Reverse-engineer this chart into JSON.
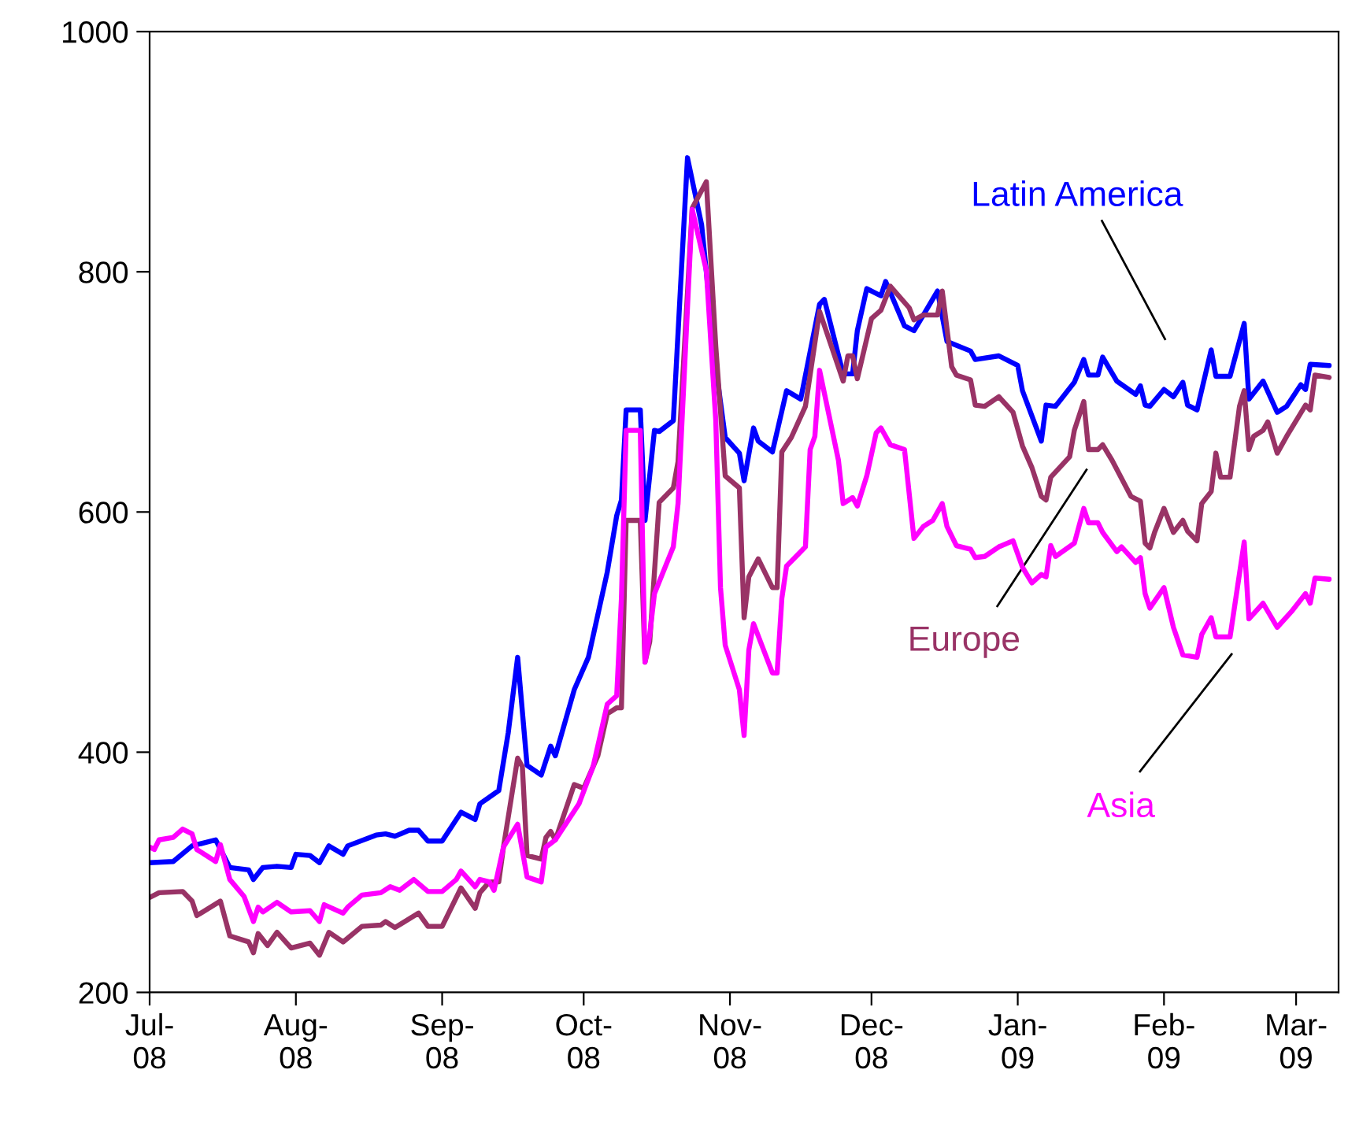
{
  "chart_data": {
    "type": "line",
    "xlim": [
      "2008-07-01",
      "2009-03-10"
    ],
    "ylim": [
      200,
      1000
    ],
    "yticks": [
      200,
      400,
      600,
      800,
      1000
    ],
    "xticks": [
      {
        "value": "2008-07-01",
        "label": "Jul-\n08"
      },
      {
        "value": "2008-08-01",
        "label": "Aug-\n08"
      },
      {
        "value": "2008-09-01",
        "label": "Sep-\n08"
      },
      {
        "value": "2008-10-01",
        "label": "Oct-\n08"
      },
      {
        "value": "2008-11-01",
        "label": "Nov-\n08"
      },
      {
        "value": "2008-12-01",
        "label": "Dec-\n08"
      },
      {
        "value": "2009-01-01",
        "label": "Jan-\n09"
      },
      {
        "value": "2009-02-01",
        "label": "Feb-\n09"
      },
      {
        "value": "2009-03-01",
        "label": "Mar-\n09"
      }
    ],
    "grid": false,
    "legend": false,
    "marker": "none",
    "line_style": "solid",
    "series": [
      {
        "name": "Latin America",
        "color": "#0000ff",
        "x": [
          "2008-07-01",
          "2008-07-06",
          "2008-07-10",
          "2008-07-15",
          "2008-07-18",
          "2008-07-22",
          "2008-07-23",
          "2008-07-25",
          "2008-07-28",
          "2008-07-31",
          "2008-08-01",
          "2008-08-04",
          "2008-08-06",
          "2008-08-08",
          "2008-08-11",
          "2008-08-12",
          "2008-08-18",
          "2008-08-20",
          "2008-08-22",
          "2008-08-25",
          "2008-08-27",
          "2008-08-29",
          "2008-09-01",
          "2008-09-05",
          "2008-09-08",
          "2008-09-09",
          "2008-09-13",
          "2008-09-15",
          "2008-09-17",
          "2008-09-19",
          "2008-09-22",
          "2008-09-24",
          "2008-09-25",
          "2008-09-29",
          "2008-10-02",
          "2008-10-06",
          "2008-10-08",
          "2008-10-09",
          "2008-10-10",
          "2008-10-13",
          "2008-10-14",
          "2008-10-16",
          "2008-10-17",
          "2008-10-20",
          "2008-10-23",
          "2008-10-26",
          "2008-10-29",
          "2008-10-31",
          "2008-11-03",
          "2008-11-04",
          "2008-11-06",
          "2008-11-07",
          "2008-11-10",
          "2008-11-13",
          "2008-11-16",
          "2008-11-20",
          "2008-11-21",
          "2008-11-25",
          "2008-11-27",
          "2008-11-28",
          "2008-11-30",
          "2008-12-03",
          "2008-12-04",
          "2008-12-08",
          "2008-12-10",
          "2008-12-12",
          "2008-12-15",
          "2008-12-17",
          "2008-12-22",
          "2008-12-23",
          "2008-12-28",
          "2009-01-01",
          "2009-01-02",
          "2009-01-06",
          "2009-01-07",
          "2009-01-09",
          "2009-01-13",
          "2009-01-15",
          "2009-01-16",
          "2009-01-18",
          "2009-01-19",
          "2009-01-22",
          "2009-01-26",
          "2009-01-27",
          "2009-01-28",
          "2009-01-29",
          "2009-02-01",
          "2009-02-03",
          "2009-02-05",
          "2009-02-06",
          "2009-02-08",
          "2009-02-11",
          "2009-02-12",
          "2009-02-15",
          "2009-02-18",
          "2009-02-19",
          "2009-02-22",
          "2009-02-25",
          "2009-02-27",
          "2009-03-02",
          "2009-03-03",
          "2009-03-04",
          "2009-03-08"
        ],
        "values": [
          308,
          309,
          322,
          327,
          304,
          302,
          294,
          304,
          305,
          304,
          315,
          314,
          308,
          322,
          315,
          322,
          331,
          332,
          330,
          335,
          335,
          326,
          326,
          350,
          344,
          357,
          368,
          416,
          479,
          389,
          381,
          405,
          397,
          452,
          479,
          550,
          597,
          610,
          685,
          685,
          593,
          668,
          667,
          676,
          895,
          839,
          721,
          662,
          649,
          626,
          670,
          659,
          650,
          701,
          694,
          773,
          777,
          715,
          715,
          751,
          786,
          780,
          792,
          755,
          751,
          764,
          784,
          742,
          734,
          727,
          730,
          722,
          701,
          659,
          689,
          688,
          708,
          727,
          714,
          714,
          729,
          709,
          698,
          705,
          689,
          688,
          702,
          696,
          708,
          689,
          685,
          735,
          713,
          713,
          757,
          694,
          709,
          683,
          688,
          706,
          702,
          723,
          722
        ]
      },
      {
        "name": "Europe",
        "color": "#993366",
        "x": [
          "2008-07-01",
          "2008-07-03",
          "2008-07-08",
          "2008-07-10",
          "2008-07-11",
          "2008-07-16",
          "2008-07-18",
          "2008-07-22",
          "2008-07-23",
          "2008-07-24",
          "2008-07-26",
          "2008-07-28",
          "2008-07-31",
          "2008-08-04",
          "2008-08-06",
          "2008-08-08",
          "2008-08-11",
          "2008-08-15",
          "2008-08-19",
          "2008-08-20",
          "2008-08-22",
          "2008-08-27",
          "2008-08-29",
          "2008-09-01",
          "2008-09-05",
          "2008-09-08",
          "2008-09-09",
          "2008-09-11",
          "2008-09-13",
          "2008-09-14",
          "2008-09-17",
          "2008-09-18",
          "2008-09-19",
          "2008-09-22",
          "2008-09-23",
          "2008-09-24",
          "2008-09-25",
          "2008-09-29",
          "2008-10-01",
          "2008-10-04",
          "2008-10-06",
          "2008-10-08",
          "2008-10-09",
          "2008-10-10",
          "2008-10-13",
          "2008-10-14",
          "2008-10-15",
          "2008-10-17",
          "2008-10-20",
          "2008-10-21",
          "2008-10-24",
          "2008-10-27",
          "2008-10-29",
          "2008-10-31",
          "2008-11-03",
          "2008-11-04",
          "2008-11-05",
          "2008-11-07",
          "2008-11-10",
          "2008-11-11",
          "2008-11-12",
          "2008-11-14",
          "2008-11-17",
          "2008-11-20",
          "2008-11-25",
          "2008-11-26",
          "2008-11-27",
          "2008-11-28",
          "2008-12-01",
          "2008-12-03",
          "2008-12-05",
          "2008-12-09",
          "2008-12-10",
          "2008-12-12",
          "2008-12-15",
          "2008-12-16",
          "2008-12-18",
          "2008-12-19",
          "2008-12-22",
          "2008-12-23",
          "2008-12-25",
          "2008-12-28",
          "2008-12-31",
          "2009-01-02",
          "2009-01-04",
          "2009-01-06",
          "2009-01-07",
          "2009-01-08",
          "2009-01-12",
          "2009-01-13",
          "2009-01-15",
          "2009-01-16",
          "2009-01-18",
          "2009-01-19",
          "2009-01-21",
          "2009-01-25",
          "2009-01-27",
          "2009-01-28",
          "2009-01-29",
          "2009-01-30",
          "2009-02-01",
          "2009-02-03",
          "2009-02-05",
          "2009-02-06",
          "2009-02-08",
          "2009-02-09",
          "2009-02-11",
          "2009-02-12",
          "2009-02-13",
          "2009-02-15",
          "2009-02-17",
          "2009-02-18",
          "2009-02-19",
          "2009-02-20",
          "2009-02-22",
          "2009-02-23",
          "2009-02-25",
          "2009-02-27",
          "2009-03-03",
          "2009-03-04",
          "2009-03-05",
          "2009-03-08"
        ],
        "values": [
          279,
          283,
          284,
          276,
          264,
          276,
          247,
          242,
          233,
          249,
          239,
          250,
          237,
          241,
          231,
          250,
          242,
          255,
          256,
          259,
          254,
          266,
          255,
          255,
          287,
          270,
          283,
          292,
          292,
          321,
          395,
          388,
          314,
          311,
          329,
          334,
          327,
          373,
          370,
          397,
          432,
          437,
          437,
          593,
          593,
          475,
          492,
          608,
          620,
          642,
          853,
          875,
          738,
          630,
          620,
          512,
          546,
          561,
          537,
          537,
          650,
          662,
          688,
          767,
          709,
          730,
          730,
          711,
          761,
          768,
          788,
          770,
          760,
          764,
          764,
          784,
          721,
          714,
          710,
          689,
          688,
          696,
          683,
          655,
          637,
          613,
          610,
          629,
          646,
          668,
          692,
          652,
          652,
          656,
          643,
          613,
          609,
          574,
          570,
          583,
          603,
          583,
          593,
          584,
          576,
          607,
          617,
          649,
          629,
          629,
          688,
          701,
          652,
          663,
          668,
          675,
          649,
          663,
          689,
          685,
          714,
          712
        ]
      },
      {
        "name": "Asia",
        "color": "#ff00ff",
        "x": [
          "2008-07-01",
          "2008-07-02",
          "2008-07-03",
          "2008-07-06",
          "2008-07-08",
          "2008-07-10",
          "2008-07-11",
          "2008-07-15",
          "2008-07-16",
          "2008-07-18",
          "2008-07-21",
          "2008-07-23",
          "2008-07-24",
          "2008-07-25",
          "2008-07-28",
          "2008-07-31",
          "2008-08-04",
          "2008-08-06",
          "2008-08-07",
          "2008-08-11",
          "2008-08-12",
          "2008-08-15",
          "2008-08-19",
          "2008-08-21",
          "2008-08-23",
          "2008-08-26",
          "2008-08-29",
          "2008-09-01",
          "2008-09-04",
          "2008-09-05",
          "2008-09-08",
          "2008-09-09",
          "2008-09-11",
          "2008-09-12",
          "2008-09-14",
          "2008-09-17",
          "2008-09-19",
          "2008-09-22",
          "2008-09-23",
          "2008-09-25",
          "2008-09-30",
          "2008-10-03",
          "2008-10-06",
          "2008-10-08",
          "2008-10-09",
          "2008-10-10",
          "2008-10-13",
          "2008-10-14",
          "2008-10-15",
          "2008-10-16",
          "2008-10-20",
          "2008-10-21",
          "2008-10-24",
          "2008-10-27",
          "2008-10-29",
          "2008-10-30",
          "2008-10-31",
          "2008-11-03",
          "2008-11-04",
          "2008-11-05",
          "2008-11-06",
          "2008-11-10",
          "2008-11-11",
          "2008-11-12",
          "2008-11-13",
          "2008-11-17",
          "2008-11-18",
          "2008-11-19",
          "2008-11-20",
          "2008-11-24",
          "2008-11-25",
          "2008-11-27",
          "2008-11-28",
          "2008-11-30",
          "2008-12-02",
          "2008-12-03",
          "2008-12-05",
          "2008-12-08",
          "2008-12-10",
          "2008-12-12",
          "2008-12-14",
          "2008-12-16",
          "2008-12-17",
          "2008-12-19",
          "2008-12-22",
          "2008-12-23",
          "2008-12-25",
          "2008-12-28",
          "2008-12-31",
          "2009-01-02",
          "2009-01-04",
          "2009-01-06",
          "2009-01-07",
          "2009-01-08",
          "2009-01-09",
          "2009-01-13",
          "2009-01-15",
          "2009-01-16",
          "2009-01-18",
          "2009-01-19",
          "2009-01-22",
          "2009-01-23",
          "2009-01-26",
          "2009-01-27",
          "2009-01-28",
          "2009-01-29",
          "2009-02-01",
          "2009-02-03",
          "2009-02-05",
          "2009-02-08",
          "2009-02-09",
          "2009-02-11",
          "2009-02-12",
          "2009-02-15",
          "2009-02-18",
          "2009-02-19",
          "2009-02-22",
          "2009-02-25",
          "2009-02-28",
          "2009-03-03",
          "2009-03-04",
          "2009-03-05",
          "2009-03-08"
        ],
        "values": [
          321,
          319,
          327,
          329,
          336,
          332,
          319,
          309,
          323,
          294,
          280,
          259,
          271,
          267,
          275,
          267,
          268,
          259,
          273,
          266,
          271,
          281,
          283,
          288,
          285,
          294,
          284,
          284,
          294,
          301,
          288,
          294,
          292,
          285,
          321,
          340,
          296,
          292,
          321,
          327,
          357,
          388,
          440,
          447,
          528,
          668,
          668,
          475,
          498,
          532,
          571,
          607,
          852,
          801,
          676,
          537,
          489,
          452,
          414,
          485,
          507,
          466,
          466,
          528,
          555,
          571,
          652,
          663,
          718,
          643,
          607,
          612,
          605,
          630,
          666,
          670,
          656,
          652,
          578,
          588,
          593,
          607,
          588,
          572,
          569,
          562,
          563,
          571,
          576,
          554,
          541,
          548,
          546,
          572,
          563,
          574,
          603,
          591,
          591,
          583,
          567,
          571,
          558,
          562,
          532,
          520,
          537,
          504,
          481,
          479,
          498,
          512,
          496,
          496,
          575,
          511,
          524,
          504,
          517,
          532,
          524,
          545,
          544
        ]
      }
    ]
  }
}
